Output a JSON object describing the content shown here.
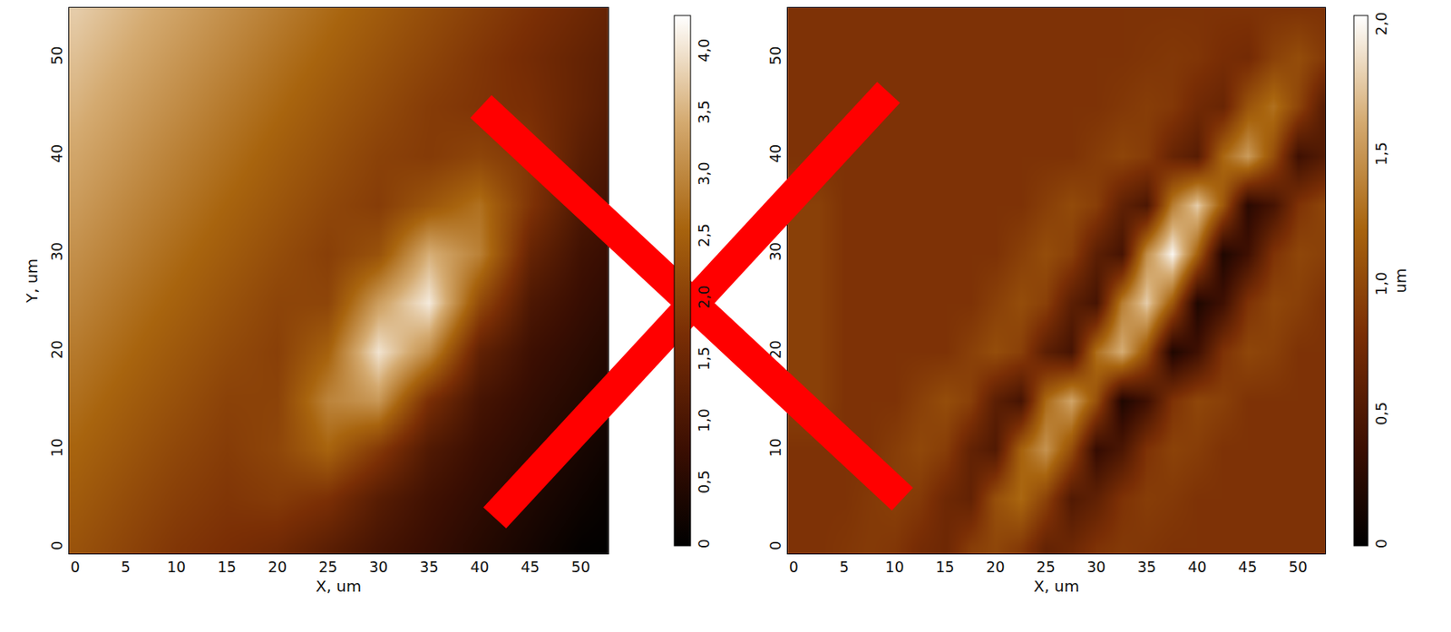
{
  "chart_data": [
    {
      "type": "heatmap",
      "xlabel": "X, um",
      "ylabel": "Y, um",
      "x": [
        0,
        5,
        10,
        15,
        20,
        25,
        30,
        35,
        40,
        45,
        50,
        55
      ],
      "y": [
        0,
        5,
        10,
        15,
        20,
        25,
        30,
        35,
        40,
        45,
        50,
        55
      ],
      "z": [
        [
          2.3,
          2.08,
          1.85,
          1.71,
          1.57,
          1.26,
          0.95,
          0.73,
          0.5,
          0.28,
          0.05,
          0.0
        ],
        [
          2.44,
          2.21,
          1.99,
          1.84,
          1.93,
          1.74,
          1.2,
          0.86,
          0.64,
          0.41,
          0.19,
          0.0
        ],
        [
          2.57,
          2.35,
          2.12,
          1.94,
          2.1,
          2.57,
          1.89,
          1.1,
          0.77,
          0.55,
          0.32,
          0.1
        ],
        [
          2.71,
          2.48,
          2.26,
          2.03,
          2.05,
          2.97,
          3.21,
          1.7,
          0.95,
          0.68,
          0.46,
          0.23
        ],
        [
          2.84,
          2.62,
          2.39,
          2.17,
          2.0,
          2.53,
          4.02,
          3.07,
          1.35,
          0.82,
          0.59,
          0.37
        ],
        [
          2.98,
          2.75,
          2.53,
          2.3,
          2.08,
          2.09,
          3.28,
          4.09,
          2.18,
          1.05,
          0.73,
          0.5
        ],
        [
          3.11,
          2.89,
          2.66,
          2.44,
          2.21,
          1.99,
          2.29,
          3.49,
          2.93,
          1.41,
          0.86,
          0.64
        ],
        [
          3.25,
          3.02,
          2.8,
          2.57,
          2.35,
          2.12,
          1.95,
          2.35,
          2.74,
          1.8,
          1.06,
          0.77
        ],
        [
          3.38,
          3.16,
          2.93,
          2.71,
          2.48,
          2.26,
          2.03,
          1.92,
          2.08,
          1.85,
          1.24,
          0.91
        ],
        [
          3.52,
          3.29,
          3.07,
          2.84,
          2.62,
          2.39,
          2.17,
          1.94,
          1.81,
          1.7,
          1.38,
          1.04
        ],
        [
          3.65,
          3.43,
          3.2,
          2.98,
          2.75,
          2.53,
          2.3,
          2.08,
          1.85,
          1.63,
          1.4,
          1.18
        ],
        [
          3.79,
          3.56,
          3.34,
          3.11,
          2.89,
          2.66,
          2.44,
          2.21,
          1.99,
          1.76,
          1.54,
          1.31
        ]
      ],
      "xlim": [
        -0.6,
        52.7
      ],
      "ylim": [
        -0.6,
        55.1
      ],
      "xticks": [
        0,
        5,
        10,
        15,
        20,
        25,
        30,
        35,
        40,
        45,
        50
      ],
      "yticks": [
        0,
        10,
        20,
        30,
        40,
        50
      ],
      "zlim": [
        0,
        4.3
      ],
      "zticks": [
        0,
        {
          "value": 0.5,
          "label": "0,5"
        },
        {
          "value": 1,
          "label": "1,0"
        },
        {
          "value": 1.5,
          "label": "1,5"
        },
        {
          "value": 2,
          "label": "2,0"
        },
        {
          "value": 2.5,
          "label": "2,5"
        },
        {
          "value": 3,
          "label": "3,0"
        },
        {
          "value": 3.5,
          "label": "3,5"
        },
        {
          "value": 4,
          "label": "4,0"
        }
      ],
      "grid": false
    },
    {
      "type": "heatmap",
      "xlabel": "X, um",
      "colorbar_title": "um",
      "x": [
        0,
        2.5,
        5,
        7.5,
        10,
        12.5,
        15,
        17.5,
        20,
        22.5,
        25,
        27.5,
        30,
        32.5,
        35,
        37.5,
        40,
        42.5,
        45,
        47.5,
        50,
        52.5,
        55
      ],
      "y": [
        0,
        5,
        10,
        15,
        20,
        25,
        30,
        35,
        40,
        45,
        50,
        55
      ],
      "z": [
        [
          0.85,
          0.85,
          0.88,
          0.91,
          0.88,
          0.78,
          0.73,
          0.93,
          1.0,
          0.9,
          0.66,
          0.72,
          0.85,
          0.9,
          0.88,
          0.85,
          0.85,
          0.85,
          0.85,
          0.85,
          0.85,
          0.85,
          0.85
        ],
        [
          0.85,
          0.85,
          0.85,
          0.9,
          0.95,
          0.9,
          0.73,
          0.65,
          1.07,
          1.25,
          0.97,
          0.53,
          0.63,
          0.85,
          0.93,
          0.9,
          0.85,
          0.85,
          0.85,
          0.85,
          0.85,
          0.85,
          0.85
        ],
        [
          0.85,
          0.85,
          0.85,
          0.85,
          0.93,
          1.01,
          0.93,
          0.65,
          0.53,
          1.21,
          1.5,
          1.05,
          0.33,
          0.49,
          0.85,
          0.97,
          0.93,
          0.85,
          0.85,
          0.85,
          0.85,
          0.85,
          0.85
        ],
        [
          0.95,
          0.95,
          0.85,
          0.85,
          0.85,
          0.95,
          1.05,
          0.95,
          0.6,
          0.45,
          1.26,
          1.6,
          1.08,
          0.2,
          0.4,
          0.85,
          1.0,
          0.95,
          0.85,
          0.85,
          0.85,
          0.85,
          0.85
        ],
        [
          0.95,
          0.95,
          0.85,
          0.85,
          0.85,
          0.85,
          0.85,
          0.95,
          1.05,
          0.95,
          0.6,
          0.45,
          1.29,
          1.65,
          1.09,
          0.2,
          0.4,
          0.85,
          1.0,
          0.95,
          0.85,
          0.85,
          0.85
        ],
        [
          0.95,
          0.95,
          0.85,
          0.85,
          0.85,
          0.85,
          0.85,
          0.85,
          0.95,
          1.05,
          0.95,
          0.6,
          0.45,
          1.37,
          1.8,
          1.14,
          0.2,
          0.4,
          0.85,
          1.0,
          0.95,
          0.85,
          0.85
        ],
        [
          0.95,
          0.95,
          0.85,
          0.85,
          0.85,
          0.85,
          0.85,
          0.85,
          0.85,
          0.95,
          1.05,
          0.95,
          0.6,
          0.45,
          1.48,
          2.0,
          1.2,
          0.2,
          0.4,
          0.85,
          1.0,
          0.95,
          0.85
        ],
        [
          0.95,
          0.95,
          0.85,
          0.85,
          0.85,
          0.85,
          0.85,
          0.85,
          0.85,
          0.85,
          0.94,
          1.03,
          0.94,
          0.63,
          0.49,
          1.37,
          1.8,
          1.14,
          0.27,
          0.45,
          0.85,
          0.99,
          0.94
        ],
        [
          0.85,
          0.85,
          0.85,
          0.85,
          0.85,
          0.85,
          0.85,
          0.85,
          0.85,
          0.85,
          0.85,
          0.85,
          0.92,
          0.99,
          0.92,
          0.68,
          0.57,
          1.24,
          1.55,
          1.06,
          0.4,
          0.54,
          0.85
        ],
        [
          0.85,
          0.85,
          0.85,
          0.85,
          0.85,
          0.85,
          0.85,
          0.85,
          0.85,
          0.85,
          0.85,
          0.85,
          0.85,
          0.89,
          0.93,
          0.89,
          0.75,
          0.69,
          1.1,
          1.3,
          0.99,
          0.59,
          0.67
        ],
        [
          0.85,
          0.85,
          0.85,
          0.85,
          0.85,
          0.85,
          0.85,
          0.85,
          0.85,
          0.85,
          0.85,
          0.85,
          0.85,
          0.85,
          0.87,
          0.89,
          0.87,
          0.8,
          0.77,
          0.96,
          1.05,
          0.91,
          0.72
        ],
        [
          0.85,
          0.85,
          0.85,
          0.85,
          0.85,
          0.85,
          0.85,
          0.85,
          0.85,
          0.85,
          0.85,
          0.85,
          0.85,
          0.85,
          0.85,
          0.85,
          0.85,
          0.85,
          0.85,
          0.85,
          0.85,
          0.85,
          0.85
        ]
      ],
      "xlim": [
        -0.6,
        52.7
      ],
      "ylim": [
        -0.6,
        55.1
      ],
      "xticks": [
        0,
        5,
        10,
        15,
        20,
        25,
        30,
        35,
        40,
        45,
        50
      ],
      "yticks": [
        0,
        10,
        20,
        30,
        40,
        50
      ],
      "zlim": [
        0,
        2.04
      ],
      "zticks": [
        0,
        {
          "value": 0.5,
          "label": "0,5"
        },
        {
          "value": 1,
          "label": "1,0"
        },
        {
          "value": 1.5,
          "label": "1,5"
        },
        {
          "value": 2,
          "label": "2,0"
        }
      ],
      "grid": false
    }
  ]
}
